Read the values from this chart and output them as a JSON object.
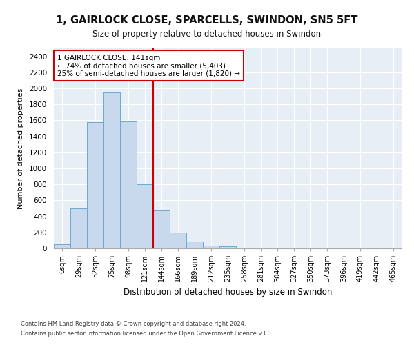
{
  "title": "1, GAIRLOCK CLOSE, SPARCELLS, SWINDON, SN5 5FT",
  "subtitle": "Size of property relative to detached houses in Swindon",
  "xlabel": "Distribution of detached houses by size in Swindon",
  "ylabel": "Number of detached properties",
  "bar_color": "#c8d9ee",
  "bar_edge_color": "#6aaad4",
  "background_color": "#e8eef5",
  "categories": [
    "6sqm",
    "29sqm",
    "52sqm",
    "75sqm",
    "98sqm",
    "121sqm",
    "144sqm",
    "166sqm",
    "189sqm",
    "212sqm",
    "235sqm",
    "258sqm",
    "281sqm",
    "304sqm",
    "327sqm",
    "350sqm",
    "373sqm",
    "396sqm",
    "419sqm",
    "442sqm",
    "465sqm"
  ],
  "values": [
    55,
    500,
    1580,
    1950,
    1590,
    800,
    475,
    195,
    90,
    35,
    28,
    0,
    0,
    0,
    0,
    0,
    0,
    0,
    0,
    0,
    0
  ],
  "ylim": [
    0,
    2500
  ],
  "yticks": [
    0,
    200,
    400,
    600,
    800,
    1000,
    1200,
    1400,
    1600,
    1800,
    2000,
    2200,
    2400
  ],
  "property_line_x": 6.0,
  "property_line_color": "#cc0000",
  "annotation_text": "1 GAIRLOCK CLOSE: 141sqm\n← 74% of detached houses are smaller (5,403)\n25% of semi-detached houses are larger (1,820) →",
  "annotation_box_color": "#ffffff",
  "annotation_box_edge_color": "#cc0000",
  "footer1": "Contains HM Land Registry data © Crown copyright and database right 2024.",
  "footer2": "Contains public sector information licensed under the Open Government Licence v3.0."
}
